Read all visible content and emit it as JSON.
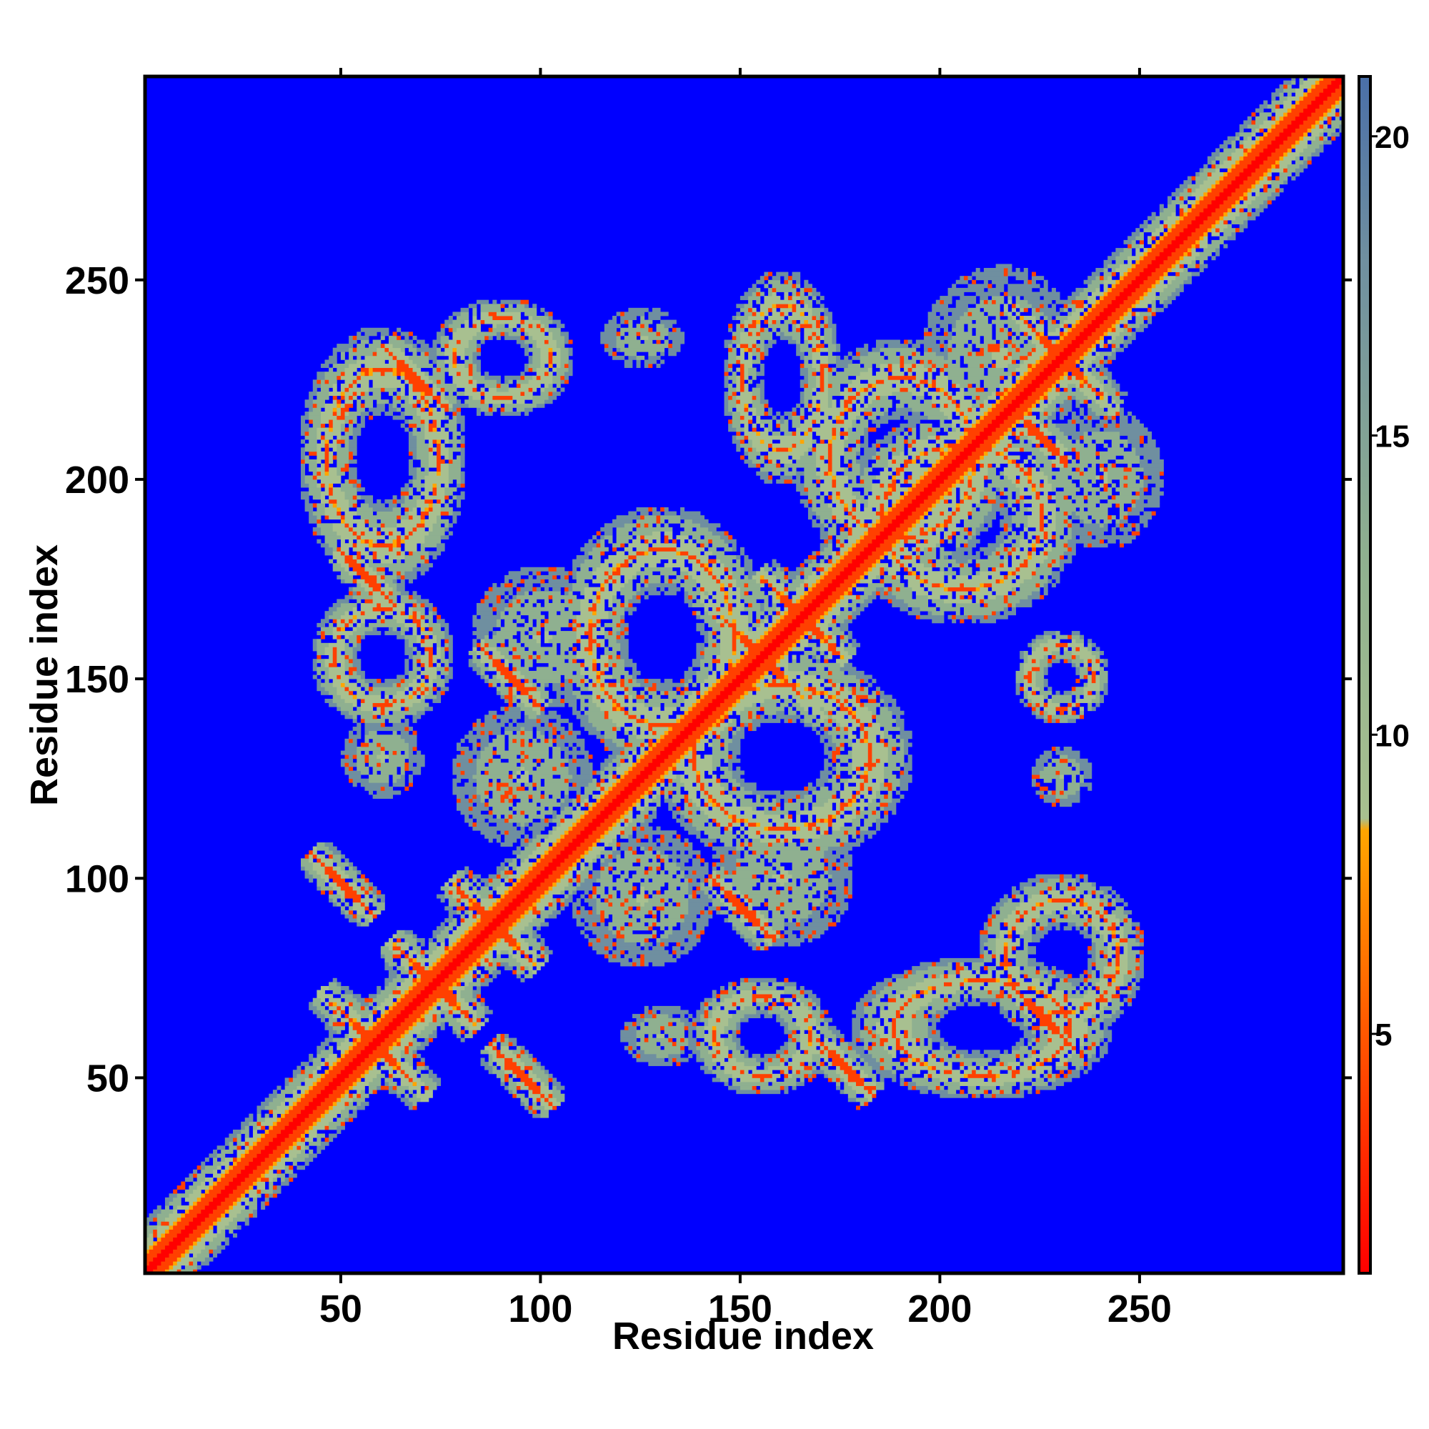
{
  "chart_data": {
    "type": "heatmap",
    "title": "",
    "xlabel": "Residue index",
    "ylabel": "Residue index",
    "xlim": [
      1,
      301
    ],
    "ylim": [
      1,
      301
    ],
    "xticks": [
      50,
      100,
      150,
      200,
      250
    ],
    "yticks": [
      50,
      100,
      150,
      200,
      250
    ],
    "colorbar": {
      "range": [
        1,
        21
      ],
      "ticks": [
        5,
        10,
        15,
        20
      ],
      "stops": [
        {
          "v": 1,
          "color": "#ff0000"
        },
        {
          "v": 4,
          "color": "#ff4000"
        },
        {
          "v": 8.4,
          "color": "#ffa500"
        },
        {
          "v": 8.6,
          "color": "#a8c090"
        },
        {
          "v": 13,
          "color": "#8fb090"
        },
        {
          "v": 18,
          "color": "#6f8fa0"
        },
        {
          "v": 21,
          "color": "#4a6fa8"
        }
      ],
      "background_color": "#0000ff"
    },
    "description_values": {
      "diagonal_distance": 1,
      "cutoff_distance": 21
    },
    "contact_features": [
      {
        "kind": "diagonal",
        "from": 1,
        "to": 301
      },
      {
        "kind": "cross",
        "x": 58,
        "y": 58,
        "extent": 12
      },
      {
        "kind": "cross",
        "x": 73,
        "y": 73,
        "extent": 10
      },
      {
        "kind": "cross",
        "x": 88,
        "y": 88,
        "extent": 10
      },
      {
        "kind": "cross",
        "x": 155,
        "y": 155,
        "extent": 14
      },
      {
        "kind": "cross",
        "x": 165,
        "y": 165,
        "extent": 10
      },
      {
        "kind": "cross",
        "x": 230,
        "y": 230,
        "extent": 12
      },
      {
        "kind": "antiparallel",
        "x": 50,
        "y": 98,
        "extent": 8
      },
      {
        "kind": "antiparallel",
        "x": 95,
        "y": 50,
        "extent": 8
      },
      {
        "kind": "antiparallel",
        "x": 68,
        "y": 225,
        "extent": 8
      },
      {
        "kind": "antiparallel",
        "x": 55,
        "y": 176,
        "extent": 6
      },
      {
        "kind": "antiparallel",
        "x": 92,
        "y": 150,
        "extent": 8
      },
      {
        "kind": "antiparallel",
        "x": 150,
        "y": 92,
        "extent": 8
      },
      {
        "kind": "antiparallel",
        "x": 176,
        "y": 52,
        "extent": 7
      },
      {
        "kind": "antiparallel",
        "x": 225,
        "y": 65,
        "extent": 8
      },
      {
        "kind": "antiparallel",
        "x": 225,
        "y": 210,
        "extent": 6
      },
      {
        "kind": "loop",
        "x": 60,
        "y": 205,
        "rx": 14,
        "ry": 22
      },
      {
        "kind": "loop",
        "x": 90,
        "y": 230,
        "rx": 12,
        "ry": 10
      },
      {
        "kind": "loop",
        "x": 210,
        "y": 62,
        "rx": 22,
        "ry": 12
      },
      {
        "kind": "loop",
        "x": 160,
        "y": 130,
        "rx": 22,
        "ry": 18
      },
      {
        "kind": "loop",
        "x": 130,
        "y": 160,
        "rx": 18,
        "ry": 22
      },
      {
        "kind": "loop",
        "x": 60,
        "y": 155,
        "rx": 12,
        "ry": 12
      },
      {
        "kind": "loop",
        "x": 155,
        "y": 60,
        "rx": 12,
        "ry": 10
      },
      {
        "kind": "loop",
        "x": 230,
        "y": 80,
        "rx": 14,
        "ry": 14
      },
      {
        "kind": "loop",
        "x": 230,
        "y": 150,
        "rx": 8,
        "ry": 8
      },
      {
        "kind": "loop",
        "x": 160,
        "y": 225,
        "rx": 10,
        "ry": 18
      },
      {
        "kind": "loop",
        "x": 205,
        "y": 190,
        "rx": 20,
        "ry": 18
      },
      {
        "kind": "loop",
        "x": 190,
        "y": 205,
        "rx": 18,
        "ry": 20
      },
      {
        "kind": "patch",
        "x": 60,
        "y": 130,
        "rx": 8,
        "ry": 8
      },
      {
        "kind": "patch",
        "x": 130,
        "y": 60,
        "rx": 8,
        "ry": 6
      },
      {
        "kind": "patch",
        "x": 125,
        "y": 95,
        "rx": 14,
        "ry": 14
      },
      {
        "kind": "patch",
        "x": 95,
        "y": 125,
        "rx": 14,
        "ry": 14
      },
      {
        "kind": "patch",
        "x": 160,
        "y": 100,
        "rx": 14,
        "ry": 14
      },
      {
        "kind": "patch",
        "x": 100,
        "y": 160,
        "rx": 14,
        "ry": 14
      },
      {
        "kind": "patch",
        "x": 230,
        "y": 125,
        "rx": 6,
        "ry": 6
      },
      {
        "kind": "patch",
        "x": 125,
        "y": 235,
        "rx": 8,
        "ry": 6
      },
      {
        "kind": "patch",
        "x": 215,
        "y": 230,
        "rx": 16,
        "ry": 18
      },
      {
        "kind": "patch",
        "x": 240,
        "y": 200,
        "rx": 12,
        "ry": 14
      }
    ]
  }
}
